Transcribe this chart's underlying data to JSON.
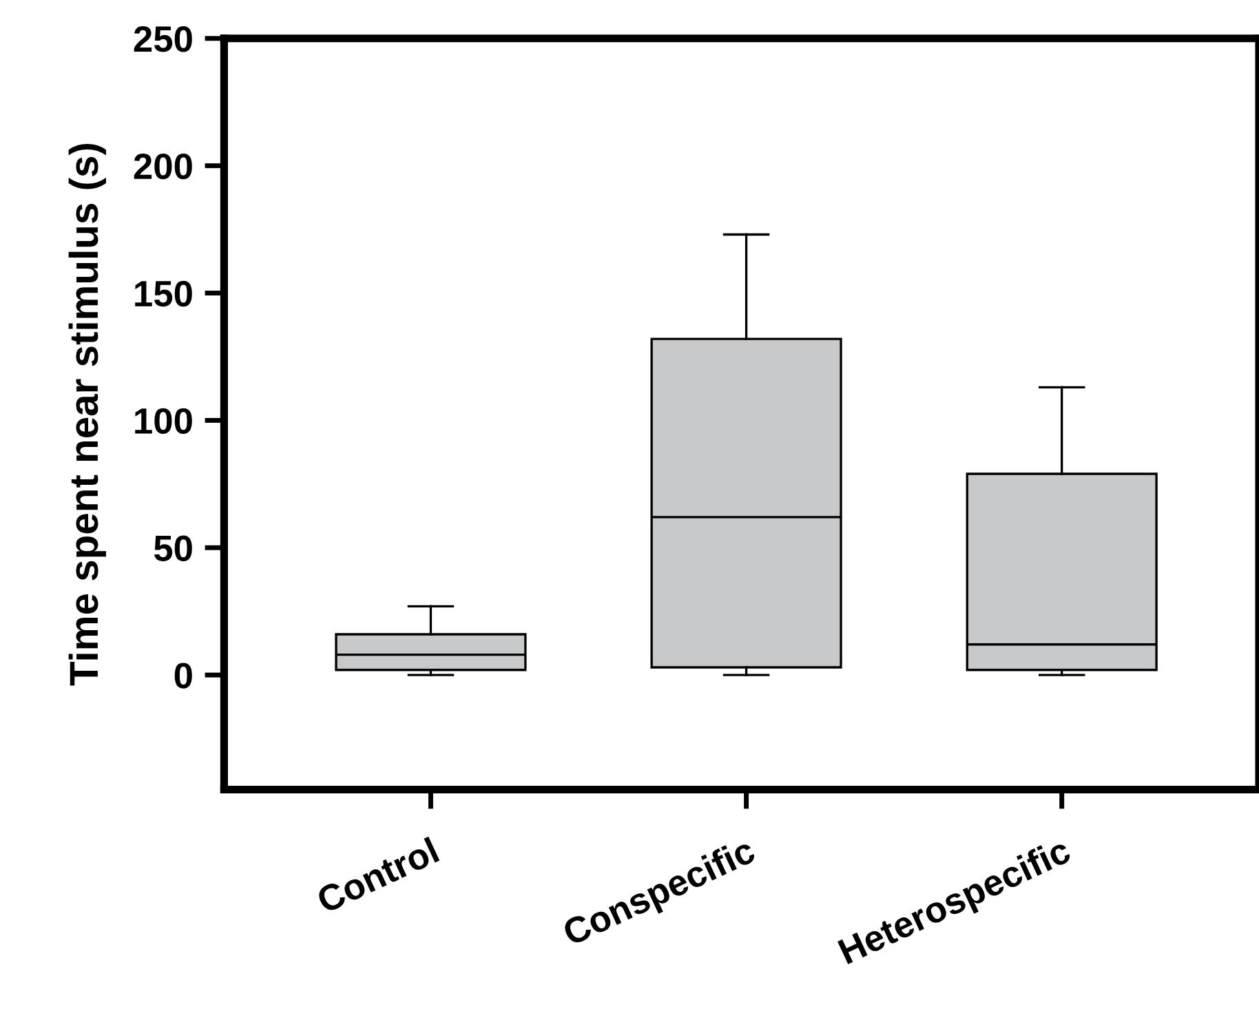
{
  "chart_data": {
    "type": "box",
    "ylabel": "Time spent near stimulus (s)",
    "categories": [
      "Control",
      "Conspecific",
      "Heterospecific"
    ],
    "boxes": [
      {
        "low": 0,
        "q1": 2,
        "median": 8,
        "q3": 16,
        "high": 27
      },
      {
        "low": 0,
        "q1": 3,
        "median": 62,
        "q3": 132,
        "high": 173
      },
      {
        "low": 0,
        "q1": 2,
        "median": 12,
        "q3": 79,
        "high": 113
      }
    ],
    "color": "#c8c9cb",
    "ylim": [
      -45,
      250
    ],
    "yticks": [
      0,
      50,
      100,
      150,
      200,
      250
    ],
    "grid": false,
    "legend": false
  }
}
